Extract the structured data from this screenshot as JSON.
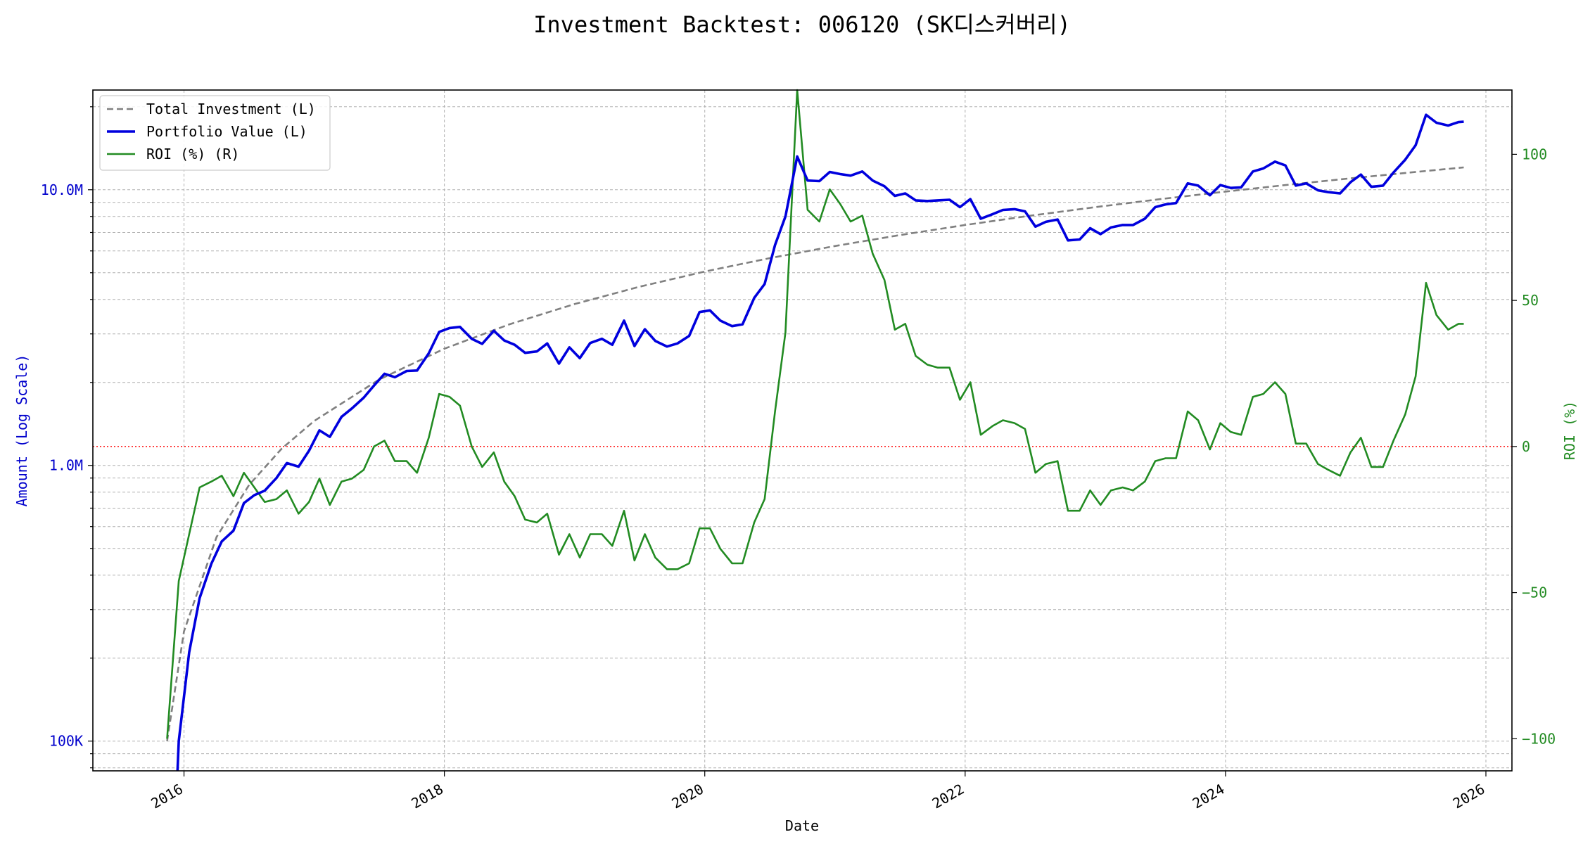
{
  "chart_data": {
    "type": "line",
    "title": "Investment Backtest: 006120 (SK디스커버리)",
    "xlabel": "Date",
    "ylabel_left": "Amount (Log Scale)",
    "ylabel_right": "ROI (%)",
    "y_left_scale": "log",
    "y_left_range": [
      78000,
      23000000
    ],
    "y_right_range": [
      -111,
      122
    ],
    "x_range": [
      2015.3,
      2026.2
    ],
    "x_ticks": [
      {
        "value": 2016,
        "label": "2016"
      },
      {
        "value": 2018,
        "label": "2018"
      },
      {
        "value": 2020,
        "label": "2020"
      },
      {
        "value": 2022,
        "label": "2022"
      },
      {
        "value": 2024,
        "label": "2024"
      },
      {
        "value": 2026,
        "label": "2026"
      }
    ],
    "y_left_ticks": [
      {
        "value": 100000,
        "label": "100K"
      },
      {
        "value": 1000000,
        "label": "1.0M"
      },
      {
        "value": 10000000,
        "label": "10.0M"
      }
    ],
    "y_right_ticks": [
      {
        "value": -100,
        "label": "−100"
      },
      {
        "value": -50,
        "label": "−50"
      },
      {
        "value": 0,
        "label": "0"
      },
      {
        "value": 50,
        "label": "50"
      },
      {
        "value": 100,
        "label": "100"
      }
    ],
    "grid": true,
    "legend_position": "top-left",
    "reference_line": {
      "axis": "right",
      "value": 0,
      "color": "#ff0000",
      "style": "dotted"
    },
    "series": [
      {
        "name": "Total Investment (L)",
        "axis": "left",
        "color": "#808080",
        "style": "dashed",
        "points": [
          [
            2015.87,
            100000
          ],
          [
            2016.0,
            250000
          ],
          [
            2016.25,
            550000
          ],
          [
            2016.5,
            850000
          ],
          [
            2016.75,
            1150000
          ],
          [
            2017.0,
            1450000
          ],
          [
            2017.5,
            2050000
          ],
          [
            2018.0,
            2650000
          ],
          [
            2018.5,
            3250000
          ],
          [
            2019.0,
            3850000
          ],
          [
            2019.5,
            4450000
          ],
          [
            2020.0,
            5050000
          ],
          [
            2020.5,
            5650000
          ],
          [
            2021.0,
            6250000
          ],
          [
            2021.5,
            6850000
          ],
          [
            2022.0,
            7450000
          ],
          [
            2022.5,
            8050000
          ],
          [
            2023.0,
            8650000
          ],
          [
            2023.5,
            9250000
          ],
          [
            2024.0,
            9850000
          ],
          [
            2024.5,
            10450000
          ],
          [
            2025.0,
            11050000
          ],
          [
            2025.5,
            11650000
          ],
          [
            2025.83,
            12050000
          ]
        ]
      },
      {
        "name": "Portfolio Value (L)",
        "axis": "left",
        "color": "#0000dd",
        "style": "solid",
        "points": [
          [
            2015.95,
            75000
          ],
          [
            2015.96,
            100000
          ],
          [
            2016.04,
            210000
          ],
          [
            2016.12,
            330000
          ],
          [
            2016.21,
            440000
          ],
          [
            2016.29,
            530000
          ],
          [
            2016.38,
            580000
          ],
          [
            2016.46,
            730000
          ],
          [
            2016.54,
            780000
          ],
          [
            2016.62,
            810000
          ],
          [
            2016.71,
            900000
          ],
          [
            2016.79,
            1020000
          ],
          [
            2016.88,
            990000
          ],
          [
            2016.96,
            1130000
          ],
          [
            2017.04,
            1340000
          ],
          [
            2017.12,
            1270000
          ],
          [
            2017.21,
            1500000
          ],
          [
            2017.29,
            1610000
          ],
          [
            2017.38,
            1760000
          ],
          [
            2017.46,
            1950000
          ],
          [
            2017.54,
            2150000
          ],
          [
            2017.62,
            2090000
          ],
          [
            2017.71,
            2200000
          ],
          [
            2017.79,
            2210000
          ],
          [
            2017.88,
            2550000
          ],
          [
            2017.96,
            3050000
          ],
          [
            2018.04,
            3150000
          ],
          [
            2018.12,
            3180000
          ],
          [
            2018.21,
            2880000
          ],
          [
            2018.29,
            2760000
          ],
          [
            2018.38,
            3080000
          ],
          [
            2018.46,
            2840000
          ],
          [
            2018.54,
            2740000
          ],
          [
            2018.62,
            2560000
          ],
          [
            2018.71,
            2590000
          ],
          [
            2018.79,
            2770000
          ],
          [
            2018.88,
            2340000
          ],
          [
            2018.96,
            2680000
          ],
          [
            2019.04,
            2450000
          ],
          [
            2019.12,
            2780000
          ],
          [
            2019.21,
            2880000
          ],
          [
            2019.29,
            2740000
          ],
          [
            2019.38,
            3350000
          ],
          [
            2019.46,
            2710000
          ],
          [
            2019.54,
            3120000
          ],
          [
            2019.62,
            2830000
          ],
          [
            2019.71,
            2700000
          ],
          [
            2019.79,
            2770000
          ],
          [
            2019.88,
            2950000
          ],
          [
            2019.96,
            3600000
          ],
          [
            2020.04,
            3650000
          ],
          [
            2020.12,
            3350000
          ],
          [
            2020.21,
            3200000
          ],
          [
            2020.29,
            3250000
          ],
          [
            2020.38,
            4050000
          ],
          [
            2020.46,
            4550000
          ],
          [
            2020.54,
            6300000
          ],
          [
            2020.62,
            8000000
          ],
          [
            2020.71,
            13200000
          ],
          [
            2020.79,
            10800000
          ],
          [
            2020.88,
            10750000
          ],
          [
            2020.96,
            11600000
          ],
          [
            2021.04,
            11400000
          ],
          [
            2021.12,
            11250000
          ],
          [
            2021.21,
            11650000
          ],
          [
            2021.29,
            10800000
          ],
          [
            2021.38,
            10300000
          ],
          [
            2021.46,
            9500000
          ],
          [
            2021.54,
            9700000
          ],
          [
            2021.62,
            9150000
          ],
          [
            2021.71,
            9100000
          ],
          [
            2021.79,
            9150000
          ],
          [
            2021.88,
            9200000
          ],
          [
            2021.96,
            8650000
          ],
          [
            2022.04,
            9250000
          ],
          [
            2022.12,
            7850000
          ],
          [
            2022.21,
            8150000
          ],
          [
            2022.29,
            8450000
          ],
          [
            2022.38,
            8500000
          ],
          [
            2022.46,
            8350000
          ],
          [
            2022.54,
            7350000
          ],
          [
            2022.62,
            7650000
          ],
          [
            2022.71,
            7800000
          ],
          [
            2022.79,
            6550000
          ],
          [
            2022.88,
            6600000
          ],
          [
            2022.96,
            7250000
          ],
          [
            2023.04,
            6900000
          ],
          [
            2023.12,
            7300000
          ],
          [
            2023.21,
            7450000
          ],
          [
            2023.29,
            7450000
          ],
          [
            2023.38,
            7850000
          ],
          [
            2023.46,
            8650000
          ],
          [
            2023.54,
            8850000
          ],
          [
            2023.62,
            8950000
          ],
          [
            2023.71,
            10550000
          ],
          [
            2023.79,
            10350000
          ],
          [
            2023.88,
            9550000
          ],
          [
            2023.96,
            10400000
          ],
          [
            2024.04,
            10150000
          ],
          [
            2024.12,
            10200000
          ],
          [
            2024.21,
            11650000
          ],
          [
            2024.29,
            11950000
          ],
          [
            2024.38,
            12650000
          ],
          [
            2024.46,
            12250000
          ],
          [
            2024.54,
            10350000
          ],
          [
            2024.62,
            10550000
          ],
          [
            2024.71,
            9950000
          ],
          [
            2024.79,
            9800000
          ],
          [
            2024.88,
            9700000
          ],
          [
            2024.96,
            10650000
          ],
          [
            2025.04,
            11350000
          ],
          [
            2025.12,
            10250000
          ],
          [
            2025.21,
            10350000
          ],
          [
            2025.29,
            11550000
          ],
          [
            2025.38,
            12850000
          ],
          [
            2025.46,
            14500000
          ],
          [
            2025.54,
            18700000
          ],
          [
            2025.62,
            17500000
          ],
          [
            2025.71,
            17100000
          ],
          [
            2025.79,
            17600000
          ],
          [
            2025.83,
            17650000
          ]
        ]
      },
      {
        "name": "ROI (%) (R)",
        "axis": "right",
        "color": "#228b22",
        "style": "solid",
        "points": [
          [
            2015.87,
            -100
          ],
          [
            2015.96,
            -46
          ],
          [
            2016.04,
            -30
          ],
          [
            2016.12,
            -14
          ],
          [
            2016.21,
            -12
          ],
          [
            2016.29,
            -10
          ],
          [
            2016.38,
            -17
          ],
          [
            2016.46,
            -9
          ],
          [
            2016.54,
            -14
          ],
          [
            2016.62,
            -19
          ],
          [
            2016.71,
            -18
          ],
          [
            2016.79,
            -15
          ],
          [
            2016.88,
            -23
          ],
          [
            2016.96,
            -19
          ],
          [
            2017.04,
            -11
          ],
          [
            2017.12,
            -20
          ],
          [
            2017.21,
            -12
          ],
          [
            2017.29,
            -11
          ],
          [
            2017.38,
            -8
          ],
          [
            2017.46,
            0
          ],
          [
            2017.54,
            2
          ],
          [
            2017.62,
            -5
          ],
          [
            2017.71,
            -5
          ],
          [
            2017.79,
            -9
          ],
          [
            2017.88,
            3
          ],
          [
            2017.96,
            18
          ],
          [
            2018.04,
            17
          ],
          [
            2018.12,
            14
          ],
          [
            2018.21,
            0
          ],
          [
            2018.29,
            -7
          ],
          [
            2018.38,
            -2
          ],
          [
            2018.46,
            -12
          ],
          [
            2018.54,
            -17
          ],
          [
            2018.62,
            -25
          ],
          [
            2018.71,
            -26
          ],
          [
            2018.79,
            -23
          ],
          [
            2018.88,
            -37
          ],
          [
            2018.96,
            -30
          ],
          [
            2019.04,
            -38
          ],
          [
            2019.12,
            -30
          ],
          [
            2019.21,
            -30
          ],
          [
            2019.29,
            -34
          ],
          [
            2019.38,
            -22
          ],
          [
            2019.46,
            -39
          ],
          [
            2019.54,
            -30
          ],
          [
            2019.62,
            -38
          ],
          [
            2019.71,
            -42
          ],
          [
            2019.79,
            -42
          ],
          [
            2019.88,
            -40
          ],
          [
            2019.96,
            -28
          ],
          [
            2020.04,
            -28
          ],
          [
            2020.12,
            -35
          ],
          [
            2020.21,
            -40
          ],
          [
            2020.29,
            -40
          ],
          [
            2020.38,
            -26
          ],
          [
            2020.46,
            -18
          ],
          [
            2020.54,
            12
          ],
          [
            2020.62,
            39
          ],
          [
            2020.71,
            122
          ],
          [
            2020.79,
            81
          ],
          [
            2020.88,
            77
          ],
          [
            2020.96,
            88
          ],
          [
            2021.04,
            83
          ],
          [
            2021.12,
            77
          ],
          [
            2021.21,
            79
          ],
          [
            2021.29,
            66
          ],
          [
            2021.38,
            57
          ],
          [
            2021.46,
            40
          ],
          [
            2021.54,
            42
          ],
          [
            2021.62,
            31
          ],
          [
            2021.71,
            28
          ],
          [
            2021.79,
            27
          ],
          [
            2021.88,
            27
          ],
          [
            2021.96,
            16
          ],
          [
            2022.04,
            22
          ],
          [
            2022.12,
            4
          ],
          [
            2022.21,
            7
          ],
          [
            2022.29,
            9
          ],
          [
            2022.38,
            8
          ],
          [
            2022.46,
            6
          ],
          [
            2022.54,
            -9
          ],
          [
            2022.62,
            -6
          ],
          [
            2022.71,
            -5
          ],
          [
            2022.79,
            -22
          ],
          [
            2022.88,
            -22
          ],
          [
            2022.96,
            -15
          ],
          [
            2023.04,
            -20
          ],
          [
            2023.12,
            -15
          ],
          [
            2023.21,
            -14
          ],
          [
            2023.29,
            -15
          ],
          [
            2023.38,
            -12
          ],
          [
            2023.46,
            -5
          ],
          [
            2023.54,
            -4
          ],
          [
            2023.62,
            -4
          ],
          [
            2023.71,
            12
          ],
          [
            2023.79,
            9
          ],
          [
            2023.88,
            -1
          ],
          [
            2023.96,
            8
          ],
          [
            2024.04,
            5
          ],
          [
            2024.12,
            4
          ],
          [
            2024.21,
            17
          ],
          [
            2024.29,
            18
          ],
          [
            2024.38,
            22
          ],
          [
            2024.46,
            18
          ],
          [
            2024.54,
            1
          ],
          [
            2024.62,
            1
          ],
          [
            2024.71,
            -6
          ],
          [
            2024.79,
            -8
          ],
          [
            2024.88,
            -10
          ],
          [
            2024.96,
            -2
          ],
          [
            2025.04,
            3
          ],
          [
            2025.12,
            -7
          ],
          [
            2025.21,
            -7
          ],
          [
            2025.29,
            2
          ],
          [
            2025.38,
            11
          ],
          [
            2025.46,
            24
          ],
          [
            2025.54,
            56
          ],
          [
            2025.62,
            45
          ],
          [
            2025.71,
            40
          ],
          [
            2025.79,
            42
          ],
          [
            2025.83,
            42
          ]
        ]
      }
    ]
  }
}
